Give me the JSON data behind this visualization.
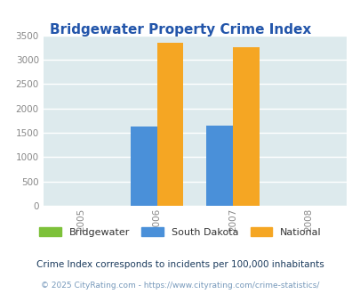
{
  "title": "Bridgewater Property Crime Index",
  "title_color": "#2255aa",
  "years": [
    2005,
    2006,
    2007,
    2008
  ],
  "bar_width": 0.35,
  "series": [
    {
      "label": "Bridgewater",
      "color": "#7dc13a",
      "values": {
        "2006": 0,
        "2007": 0
      }
    },
    {
      "label": "South Dakota",
      "color": "#4a90d9",
      "values": {
        "2006": 1620,
        "2007": 1640
      }
    },
    {
      "label": "National",
      "color": "#f5a623",
      "values": {
        "2006": 3340,
        "2007": 3260
      }
    }
  ],
  "ylim": [
    0,
    3500
  ],
  "yticks": [
    0,
    500,
    1000,
    1500,
    2000,
    2500,
    3000,
    3500
  ],
  "plot_bg_color": "#ddeaed",
  "fig_bg_color": "#ffffff",
  "grid_color": "#ffffff",
  "footnote1": "Crime Index corresponds to incidents per 100,000 inhabitants",
  "footnote2": "© 2025 CityRating.com - https://www.cityrating.com/crime-statistics/",
  "footnote1_color": "#1a3a5c",
  "footnote2_color": "#7799bb",
  "legend_labels": [
    "Bridgewater",
    "South Dakota",
    "National"
  ],
  "legend_colors": [
    "#7dc13a",
    "#4a90d9",
    "#f5a623"
  ]
}
